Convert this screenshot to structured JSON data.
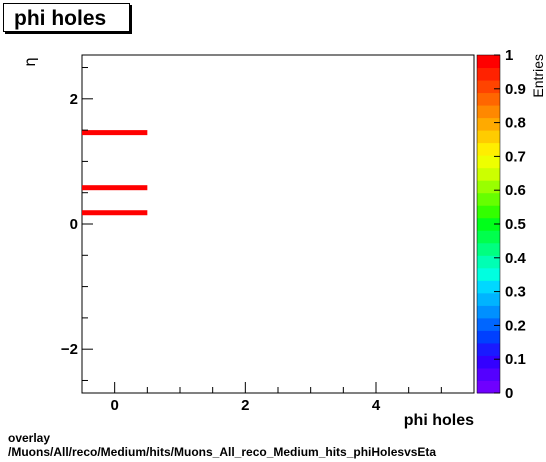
{
  "chart_data": {
    "type": "heatmap",
    "title": "phi holes",
    "xlabel": "phi holes",
    "ylabel": "η",
    "zlabel": "Entries",
    "xlim": [
      -0.5,
      5.5
    ],
    "ylim": [
      -2.7,
      2.7
    ],
    "zlim": [
      0,
      1
    ],
    "x_ticks": [
      0,
      2,
      4
    ],
    "y_ticks": [
      -2,
      0,
      2
    ],
    "z_ticks": [
      0,
      0.1,
      0.2,
      0.3,
      0.4,
      0.5,
      0.6,
      0.7,
      0.8,
      0.9,
      1
    ],
    "bins": [
      {
        "x": [
          -0.5,
          0.5
        ],
        "y": [
          1.42,
          1.5
        ],
        "value": 1
      },
      {
        "x": [
          -0.5,
          0.5
        ],
        "y": [
          0.54,
          0.62
        ],
        "value": 1
      },
      {
        "x": [
          -0.5,
          0.5
        ],
        "y": [
          0.14,
          0.22
        ],
        "value": 1
      }
    ]
  },
  "footer": {
    "line1": "overlay",
    "line2": "/Muons/All/reco/Medium/hits/Muons_All_reco_Medium_hits_phiHolesvsEta"
  }
}
